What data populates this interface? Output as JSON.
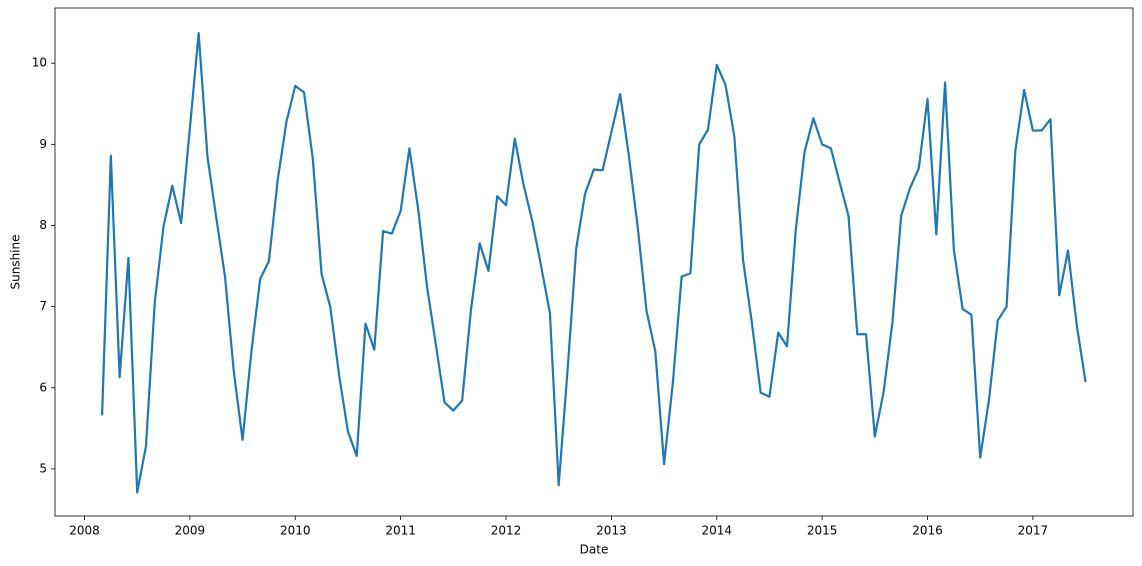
{
  "chart_data": {
    "type": "line",
    "xlabel": "Date",
    "ylabel": "Sunshine",
    "x": [
      "2008-03",
      "2008-04",
      "2008-05",
      "2008-06",
      "2008-07",
      "2008-08",
      "2008-09",
      "2008-10",
      "2008-11",
      "2008-12",
      "2009-01",
      "2009-02",
      "2009-03",
      "2009-04",
      "2009-05",
      "2009-06",
      "2009-07",
      "2009-08",
      "2009-09",
      "2009-10",
      "2009-11",
      "2009-12",
      "2010-01",
      "2010-02",
      "2010-03",
      "2010-04",
      "2010-05",
      "2010-06",
      "2010-07",
      "2010-08",
      "2010-09",
      "2010-10",
      "2010-11",
      "2010-12",
      "2011-01",
      "2011-02",
      "2011-03",
      "2011-04",
      "2011-05",
      "2011-06",
      "2011-07",
      "2011-08",
      "2011-09",
      "2011-10",
      "2011-11",
      "2011-12",
      "2012-01",
      "2012-02",
      "2012-03",
      "2012-04",
      "2012-05",
      "2012-06",
      "2012-07",
      "2012-08",
      "2012-09",
      "2012-10",
      "2012-11",
      "2012-12",
      "2013-01",
      "2013-02",
      "2013-03",
      "2013-04",
      "2013-05",
      "2013-06",
      "2013-07",
      "2013-08",
      "2013-09",
      "2013-10",
      "2013-11",
      "2013-12",
      "2014-01",
      "2014-02",
      "2014-03",
      "2014-04",
      "2014-05",
      "2014-06",
      "2014-07",
      "2014-08",
      "2014-09",
      "2014-10",
      "2014-11",
      "2014-12",
      "2015-01",
      "2015-02",
      "2015-03",
      "2015-04",
      "2015-05",
      "2015-06",
      "2015-07",
      "2015-08",
      "2015-09",
      "2015-10",
      "2015-11",
      "2015-12",
      "2016-01",
      "2016-02",
      "2016-03",
      "2016-04",
      "2016-05",
      "2016-06",
      "2016-07",
      "2016-08",
      "2016-09",
      "2016-10",
      "2016-11",
      "2016-12",
      "2017-01",
      "2017-02",
      "2017-03",
      "2017-04",
      "2017-05",
      "2017-06",
      "2017-07"
    ],
    "series": [
      {
        "name": "Sunshine",
        "color": "#1f77b4",
        "values": [
          5.66,
          8.86,
          6.13,
          7.6,
          4.71,
          5.28,
          7.05,
          7.99,
          8.49,
          8.03,
          9.2,
          10.37,
          8.85,
          8.1,
          7.37,
          6.2,
          5.36,
          6.44,
          7.34,
          7.56,
          8.56,
          9.28,
          9.72,
          9.64,
          8.82,
          7.4,
          6.99,
          6.15,
          5.46,
          5.16,
          6.79,
          6.47,
          7.93,
          7.9,
          8.18,
          8.95,
          8.2,
          7.25,
          6.54,
          5.82,
          5.72,
          5.84,
          6.95,
          7.78,
          7.44,
          8.36,
          8.25,
          9.07,
          8.5,
          8.05,
          7.5,
          6.92,
          4.8,
          6.2,
          7.72,
          8.39,
          8.69,
          8.68,
          9.15,
          9.62,
          8.85,
          7.98,
          6.95,
          6.45,
          5.06,
          6.06,
          7.37,
          7.41,
          9.0,
          9.18,
          9.98,
          9.73,
          9.1,
          7.57,
          6.8,
          5.94,
          5.89,
          6.68,
          6.51,
          7.95,
          8.91,
          9.32,
          9.0,
          8.95,
          8.53,
          8.12,
          6.66,
          6.66,
          5.4,
          5.95,
          6.8,
          8.12,
          8.46,
          8.7,
          9.56,
          7.89,
          9.76,
          7.7,
          6.97,
          6.9,
          5.14,
          5.85,
          6.83,
          7.0,
          8.92,
          9.67,
          9.17,
          9.17,
          9.31,
          7.14,
          7.69,
          6.77,
          6.07
        ]
      }
    ],
    "xlim": [
      2007.72,
      2017.95
    ],
    "xticks": [
      2008,
      2009,
      2010,
      2011,
      2012,
      2013,
      2014,
      2015,
      2016,
      2017
    ],
    "ylim": [
      4.42,
      10.68
    ],
    "yticks": [
      5,
      6,
      7,
      8,
      9,
      10
    ]
  }
}
